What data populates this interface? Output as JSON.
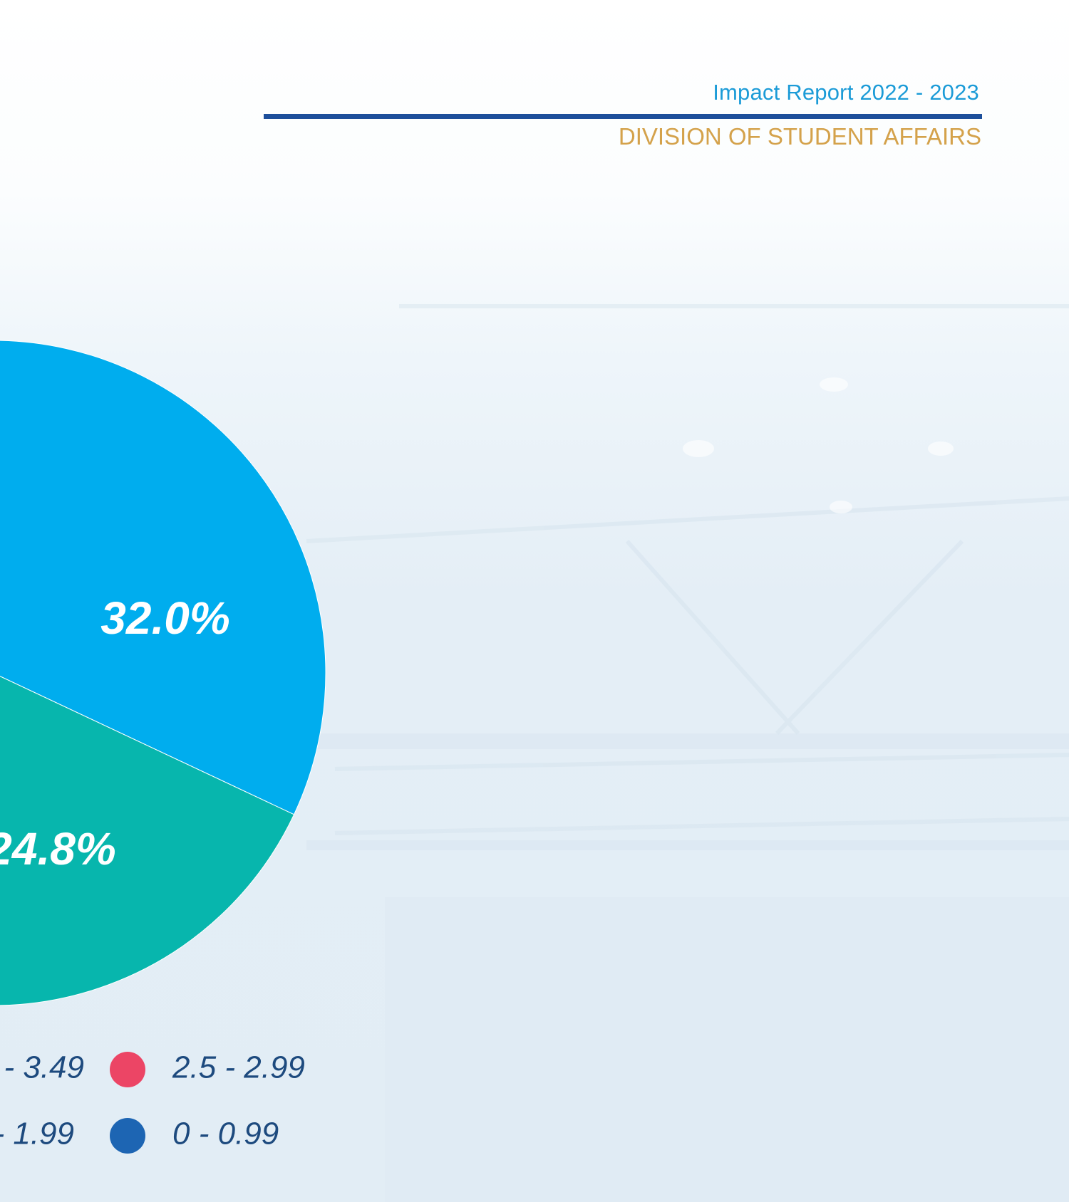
{
  "header": {
    "title": "Impact Report 2022 - 2023",
    "subtitle": "DIVISION OF STUDENT AFFAIRS"
  },
  "colors": {
    "title": "#1b9bd7",
    "rule": "#1d4f9b",
    "subtitle": "#d4a24b",
    "slice_a": "#00adee",
    "slice_b": "#07b6ad",
    "legend_red": "#ec4565",
    "legend_blue": "#1d65b3",
    "legend_text": "#1d4a7e"
  },
  "chart_data": {
    "type": "pie",
    "title": "",
    "slices": [
      {
        "label": "32.0%",
        "value": 32.0,
        "color": "#00adee"
      },
      {
        "label": "24.8%",
        "value": 24.8,
        "color": "#07b6ad"
      }
    ],
    "legend": [
      {
        "label": "- 3.49",
        "color": null
      },
      {
        "label": "2.5 - 2.99",
        "color": "#ec4565"
      },
      {
        "label": "- 1.99",
        "color": null
      },
      {
        "label": "0 - 0.99",
        "color": "#1d65b3"
      }
    ],
    "legend_placement": "bottom"
  }
}
